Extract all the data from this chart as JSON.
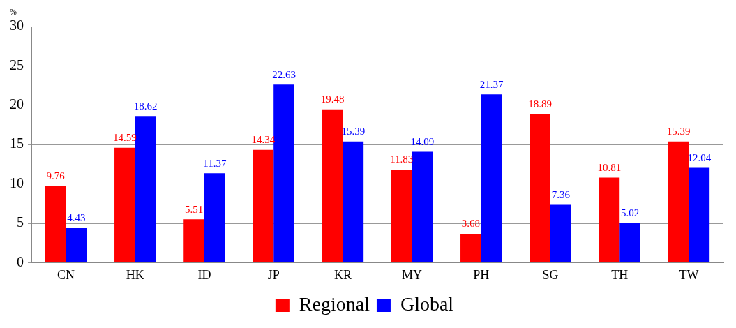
{
  "chart_data": {
    "type": "bar",
    "ylabel": "%",
    "categories": [
      "CN",
      "HK",
      "ID",
      "JP",
      "KR",
      "MY",
      "PH",
      "SG",
      "TH",
      "TW"
    ],
    "series": [
      {
        "name": "Regional",
        "color": "#ff0000",
        "values": [
          9.76,
          14.59,
          5.51,
          14.34,
          19.48,
          11.83,
          3.68,
          18.89,
          10.81,
          15.39
        ]
      },
      {
        "name": "Global",
        "color": "#0000ff",
        "values": [
          4.43,
          18.62,
          11.37,
          22.63,
          15.39,
          14.09,
          21.37,
          7.36,
          5.02,
          12.04
        ]
      }
    ],
    "ylim": [
      0,
      30
    ],
    "yticks": [
      0,
      5,
      10,
      15,
      20,
      25,
      30
    ],
    "grid": "y",
    "legend": "bottom",
    "data_labels": true
  }
}
